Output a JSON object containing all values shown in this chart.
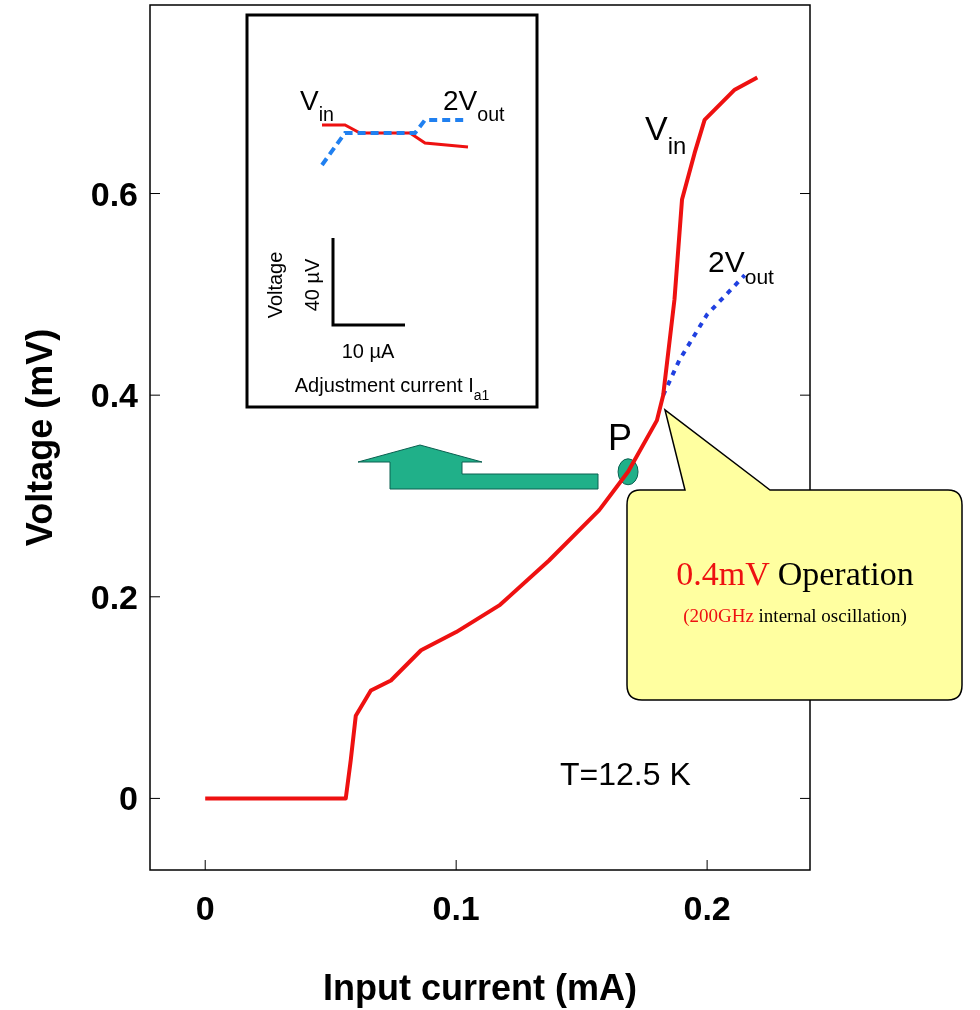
{
  "chart_data": {
    "type": "line",
    "xlabel": "Input current (mA)",
    "ylabel": "Voltage (mV)",
    "xlim": [
      -0.022,
      0.241
    ],
    "ylim": [
      -0.071,
      0.787
    ],
    "xticks": [
      0,
      0.1,
      0.2
    ],
    "yticks": [
      0,
      0.2,
      0.4,
      0.6
    ],
    "grid": false,
    "series": [
      {
        "name": "2V$_{out}$",
        "color": "#2040e0",
        "line_style": "dotted",
        "x": [
          0.1825,
          0.189,
          0.2,
          0.215
        ],
        "values": [
          0.4,
          0.435,
          0.48,
          0.519
        ]
      },
      {
        "name": "V$_{in}$",
        "color": "#ee1111",
        "line_style": "solid",
        "x": [
          0,
          0.056,
          0.058,
          0.06,
          0.066,
          0.074,
          0.086,
          0.1,
          0.1175,
          0.137,
          0.157,
          0.1685,
          0.18,
          0.1825,
          0.187,
          0.19,
          0.195,
          0.199,
          0.211,
          0.22
        ],
        "values": [
          0,
          0,
          0.038,
          0.082,
          0.107,
          0.117,
          0.147,
          0.165,
          0.192,
          0.236,
          0.286,
          0.324,
          0.375,
          0.4,
          0.495,
          0.594,
          0.64,
          0.673,
          0.703,
          0.715
        ]
      },
      {
        "type": "scatter",
        "marker": "circle",
        "color": "#20b089",
        "x": [
          0.1685
        ],
        "values": [
          0.324
        ]
      }
    ],
    "annotations": [
      "T=12.5 K",
      {
        "text": "P",
        "x": 0.1685,
        "y": 0.324
      },
      "0.4mV",
      "Operation",
      "(",
      "200GHz",
      "internal oscillation)",
      "V$_{in}$",
      "2V$_{out}$",
      "Voltage",
      "40 µV",
      "10 µA",
      "Adjustment current I$_{a1}$"
    ]
  }
}
